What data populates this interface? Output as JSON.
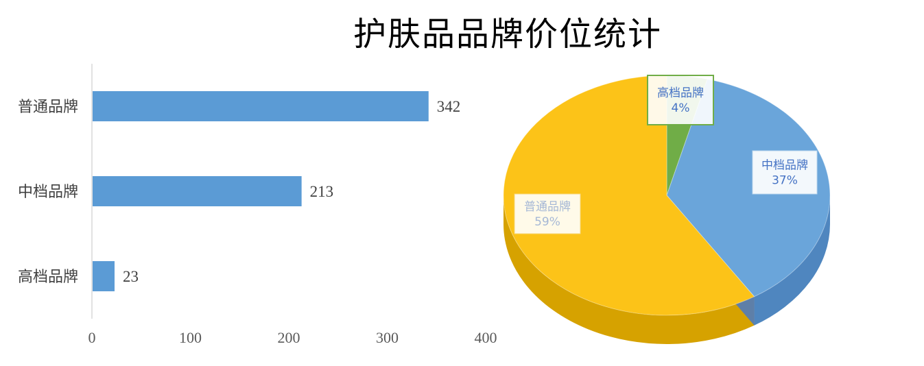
{
  "title": "护肤品品牌价位统计",
  "colors": {
    "bar": "#5B9BD5",
    "axis": "#D9D9D9",
    "pie_general": "#FCC318",
    "pie_general_side": "#D6A200",
    "pie_mid": "#6AA5DA",
    "pie_mid_side": "#4F86BF",
    "pie_high": "#70AD47",
    "label_text": "#4472C4"
  },
  "chart_data": [
    {
      "type": "bar",
      "orientation": "horizontal",
      "categories": [
        "普通品牌",
        "中档品牌",
        "高档品牌"
      ],
      "values": [
        342,
        213,
        23
      ],
      "xlim": [
        0,
        400
      ],
      "xticks": [
        0,
        100,
        200,
        300,
        400
      ],
      "data_labels": true,
      "grid": false
    },
    {
      "type": "pie",
      "style": "3d",
      "categories": [
        "普通品牌",
        "中档品牌",
        "高档品牌"
      ],
      "percent_labels": [
        "59%",
        "37%",
        "4%"
      ],
      "values": [
        59,
        37,
        4
      ]
    }
  ]
}
